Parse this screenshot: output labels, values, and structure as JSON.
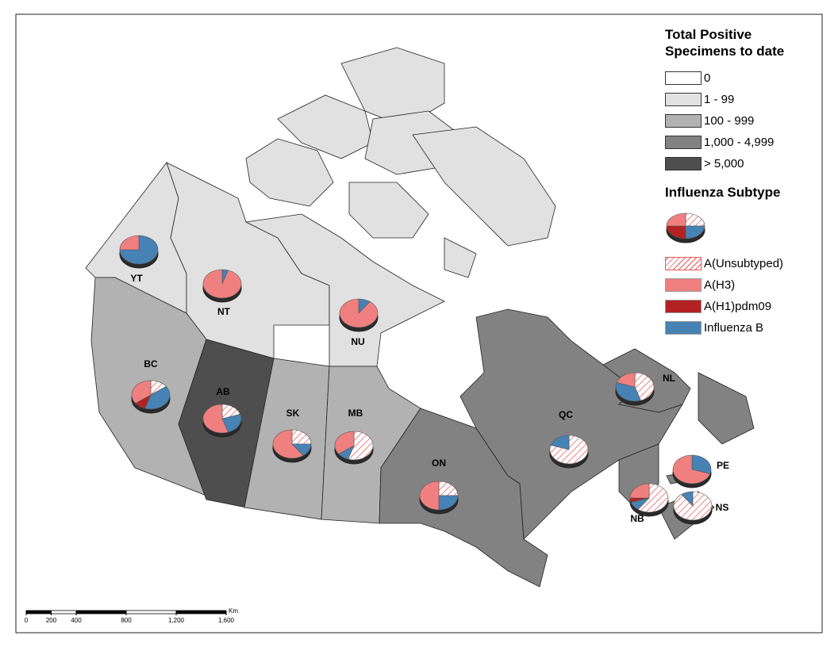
{
  "legend": {
    "title": "Total Positive Specimens to date",
    "classes": [
      {
        "label": "0",
        "color": "#ffffff"
      },
      {
        "label": "1 - 99",
        "color": "#e1e1e1"
      },
      {
        "label": "100 - 999",
        "color": "#b2b2b2"
      },
      {
        "label": "1,000 - 4,999",
        "color": "#828282"
      },
      {
        "label": "> 5,000",
        "color": "#4e4e4e"
      }
    ]
  },
  "subtype_legend": {
    "title": "Influenza Subtype",
    "items": [
      {
        "label": "A(Unsubtyped)",
        "color": "#e8555a",
        "pattern": "hatch"
      },
      {
        "label": "A(H3)",
        "color": "#f08080",
        "pattern": "solid"
      },
      {
        "label": "A(H1)pdm09",
        "color": "#b22222",
        "pattern": "solid"
      },
      {
        "label": "Influenza B",
        "color": "#4682b4",
        "pattern": "solid"
      }
    ]
  },
  "provinces": [
    {
      "label": "YT",
      "class": 1,
      "pie": [
        0,
        25,
        0,
        75
      ]
    },
    {
      "label": "NT",
      "class": 1,
      "pie": [
        0,
        95,
        0,
        5
      ]
    },
    {
      "label": "NU",
      "class": 1,
      "pie": [
        0,
        90,
        0,
        10
      ]
    },
    {
      "label": "BC",
      "class": 2,
      "pie": [
        15,
        35,
        10,
        40
      ]
    },
    {
      "label": "AB",
      "class": 4,
      "pie": [
        20,
        55,
        0,
        25
      ]
    },
    {
      "label": "SK",
      "class": 2,
      "pie": [
        25,
        60,
        0,
        15
      ]
    },
    {
      "label": "MB",
      "class": 2,
      "pie": [
        55,
        35,
        0,
        10
      ]
    },
    {
      "label": "ON",
      "class": 3,
      "pie": [
        25,
        50,
        0,
        25
      ]
    },
    {
      "label": "QC",
      "class": 3,
      "pie": [
        80,
        0,
        0,
        20
      ]
    },
    {
      "label": "NL",
      "class": 3,
      "pie": [
        45,
        20,
        0,
        35
      ]
    },
    {
      "label": "PE",
      "class": 3,
      "pie": [
        0,
        70,
        0,
        30
      ]
    },
    {
      "label": "NB",
      "class": 3,
      "pie": [
        60,
        25,
        5,
        10
      ]
    },
    {
      "label": "NS",
      "class": 3,
      "pie": [
        90,
        0,
        0,
        10
      ]
    }
  ],
  "scale_bar": {
    "unit": "Km",
    "ticks": [
      0,
      200,
      400,
      800,
      {
        "value": 1200,
        "label": "1,200"
      },
      {
        "value": 1600,
        "label": "1,600"
      }
    ]
  }
}
